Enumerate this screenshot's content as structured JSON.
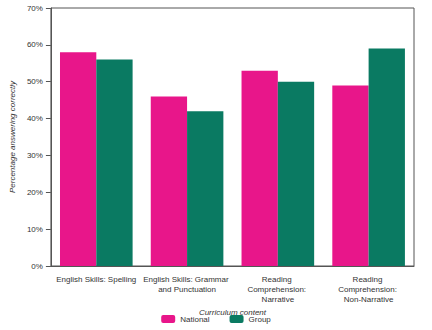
{
  "chart_data": {
    "type": "bar",
    "x_label": "Curriculum content",
    "y_label": "Percentage answering correctly",
    "categories": [
      "English Skills: Spelling",
      "English Skills: Grammar and Punctuation",
      "Reading Comprehension: Narrative",
      "Reading Comprehension: Non-Narrative"
    ],
    "series": [
      {
        "name": "National",
        "color": "#e8168a",
        "values": [
          58,
          46,
          53,
          49
        ]
      },
      {
        "name": "Group",
        "color": "#0a7a62",
        "values": [
          56,
          42,
          50,
          59
        ]
      }
    ],
    "ylim": [
      0,
      70
    ],
    "yticks": [
      {
        "value": 0,
        "label": "0%"
      },
      {
        "value": 10,
        "label": "10%"
      },
      {
        "value": 20,
        "label": "20%"
      },
      {
        "value": 30,
        "label": "30%"
      },
      {
        "value": 40,
        "label": "40%"
      },
      {
        "value": 50,
        "label": "50%"
      },
      {
        "value": 60,
        "label": "60%"
      },
      {
        "value": 70,
        "label": "70%"
      }
    ],
    "grid": false,
    "legend": "bottom"
  }
}
